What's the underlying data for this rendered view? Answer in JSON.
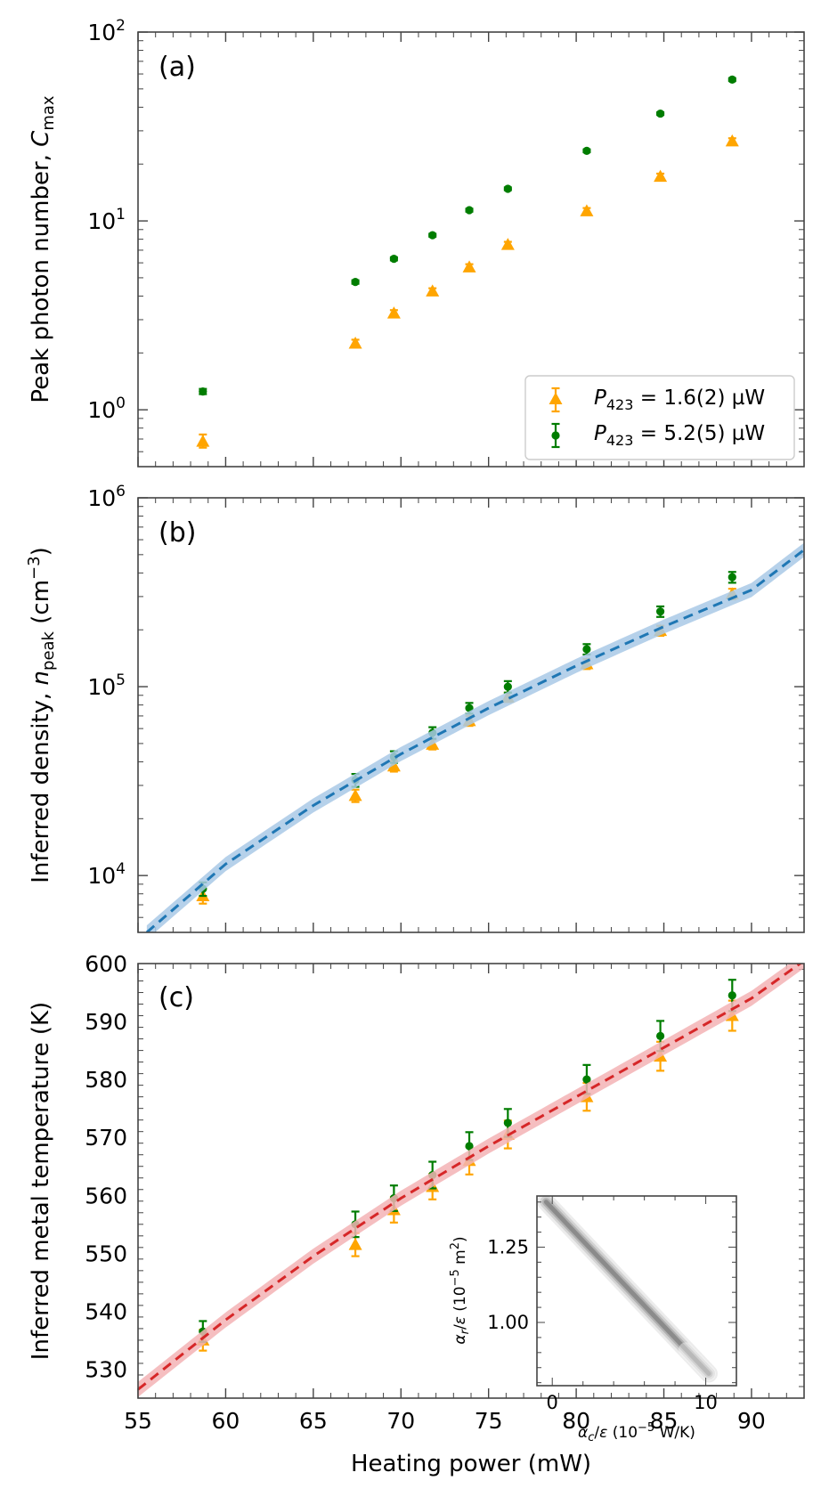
{
  "colors": {
    "series_low": "#ffa500",
    "series_high": "#007d00",
    "fit_density": "#1f77b4",
    "fit_density_band": "#a9c9e6",
    "fit_temperature": "#d62728",
    "fit_temperature_band": "#f3b3b5",
    "frame": "#444444"
  },
  "chart_data": [
    {
      "panel_label": "(a)",
      "type": "scatter",
      "yscale": "log",
      "ylabel": "Peak photon number, C_max",
      "ylabel_parts": {
        "main": "Peak photon number, ",
        "var": "C",
        "sub": "max"
      },
      "xlim": [
        55,
        93
      ],
      "ylim": [
        0.5,
        100
      ],
      "y_tick_labels": [
        {
          "value": 1,
          "base": "10",
          "exp": "0"
        },
        {
          "value": 10,
          "base": "10",
          "exp": "1"
        },
        {
          "value": 100,
          "base": "10",
          "exp": "2"
        }
      ],
      "legend": {
        "position": "lower-right",
        "entries": [
          {
            "series": "low",
            "var": "P",
            "sub": "423",
            "text": " = 1.6(2) µW"
          },
          {
            "series": "high",
            "var": "P",
            "sub": "423",
            "text": " = 5.2(5) µW"
          }
        ]
      },
      "series": [
        {
          "key": "low",
          "name": "P_423 = 1.6(2) µW",
          "marker": "triangle",
          "x": [
            58.7,
            67.4,
            69.6,
            71.8,
            73.9,
            76.1,
            80.6,
            84.8,
            88.9
          ],
          "y": [
            0.68,
            2.25,
            3.25,
            4.25,
            5.7,
            7.5,
            11.3,
            17.2,
            26.5
          ],
          "err_low": [
            0.05,
            0.1,
            0.12,
            0.15,
            0.2,
            0.25,
            0.4,
            0.6,
            0.9
          ],
          "err_high": [
            0.06,
            0.1,
            0.12,
            0.15,
            0.2,
            0.25,
            0.4,
            0.6,
            0.9
          ]
        },
        {
          "key": "high",
          "name": "P_423 = 5.2(5) µW",
          "marker": "circle",
          "x": [
            58.7,
            67.4,
            69.6,
            71.8,
            73.9,
            76.1,
            80.6,
            84.8,
            88.9
          ],
          "y": [
            1.25,
            4.75,
            6.3,
            8.4,
            11.4,
            14.8,
            23.5,
            37.0,
            56.0
          ],
          "err_low": [
            0.04,
            0.1,
            0.12,
            0.15,
            0.2,
            0.25,
            0.4,
            0.6,
            1.0
          ],
          "err_high": [
            0.04,
            0.1,
            0.12,
            0.15,
            0.2,
            0.25,
            0.4,
            0.6,
            1.0
          ]
        }
      ]
    },
    {
      "panel_label": "(b)",
      "type": "scatter",
      "yscale": "log",
      "ylabel": "Inferred density, n_peak (cm^-3)",
      "ylabel_parts": {
        "main": "Inferred density, ",
        "var": "n",
        "sub": "peak",
        "unit_pre": " (cm",
        "unit_exp": "−3",
        "unit_post": ")"
      },
      "xlim": [
        55,
        93
      ],
      "ylim": [
        5000,
        1000000
      ],
      "y_tick_labels": [
        {
          "value": 10000,
          "base": "10",
          "exp": "4"
        },
        {
          "value": 100000,
          "base": "10",
          "exp": "5"
        },
        {
          "value": 1000000,
          "base": "10",
          "exp": "6"
        }
      ],
      "series": [
        {
          "key": "low",
          "name": "P_423 = 1.6(2) µW",
          "marker": "triangle",
          "x": [
            58.7,
            67.4,
            69.6,
            71.8,
            73.9,
            76.1,
            80.6,
            84.8,
            88.9
          ],
          "y": [
            7800,
            26500,
            38000,
            49500,
            66000,
            88000,
            132000,
            198000,
            310000
          ],
          "err_low": [
            700,
            2000,
            2500,
            3000,
            4000,
            5000,
            8000,
            12000,
            20000
          ],
          "err_high": [
            700,
            2000,
            2500,
            3000,
            4000,
            5000,
            8000,
            12000,
            20000
          ]
        },
        {
          "key": "high",
          "name": "P_423 = 5.2(5) µW",
          "marker": "circle",
          "x": [
            58.7,
            67.4,
            69.6,
            71.8,
            73.9,
            76.1,
            80.6,
            84.8,
            88.9
          ],
          "y": [
            8500,
            32000,
            42500,
            57000,
            77000,
            100000,
            158000,
            250000,
            380000
          ],
          "err_low": [
            700,
            2500,
            3000,
            4000,
            5000,
            7000,
            10000,
            16000,
            25000
          ],
          "err_high": [
            700,
            2500,
            3000,
            4000,
            5000,
            7000,
            10000,
            16000,
            25000
          ]
        },
        {
          "key": "fit",
          "type": "line",
          "style": "dashed",
          "band": true,
          "band_rel": 0.09,
          "x": [
            55.5,
            60,
            65,
            70,
            75,
            80,
            85,
            90,
            93
          ],
          "y": [
            5000,
            11500,
            23500,
            44000,
            77000,
            129000,
            208000,
            325000,
            530000
          ]
        }
      ]
    },
    {
      "panel_label": "(c)",
      "type": "scatter",
      "yscale": "linear",
      "xlabel": "Heating power (mW)",
      "ylabel": "Inferred metal temperature  (K)",
      "xlim": [
        55,
        93
      ],
      "ylim": [
        525,
        600
      ],
      "x_ticks": [
        55,
        60,
        65,
        70,
        75,
        80,
        85,
        90
      ],
      "y_ticks": [
        530,
        540,
        550,
        560,
        570,
        580,
        590,
        600
      ],
      "series": [
        {
          "key": "low",
          "name": "P_423 = 1.6(2) µW",
          "marker": "triangle",
          "x": [
            58.7,
            67.4,
            69.6,
            71.8,
            73.9,
            76.1,
            80.6,
            84.8,
            88.9
          ],
          "y": [
            535.0,
            551.5,
            557.5,
            561.5,
            566.0,
            570.5,
            577.0,
            584.0,
            591.0
          ],
          "err_low": [
            1.8,
            2.0,
            2.2,
            2.2,
            2.4,
            2.4,
            2.4,
            2.5,
            2.6
          ],
          "err_high": [
            1.8,
            2.0,
            2.2,
            2.2,
            2.4,
            2.4,
            2.4,
            2.5,
            2.6
          ]
        },
        {
          "key": "high",
          "name": "P_423 = 5.2(5) µW",
          "marker": "circle",
          "x": [
            58.7,
            67.4,
            69.6,
            71.8,
            73.9,
            76.1,
            80.6,
            84.8,
            88.9
          ],
          "y": [
            536.5,
            555.0,
            559.5,
            563.5,
            568.5,
            572.5,
            580.0,
            587.5,
            594.5
          ],
          "err_low": [
            1.8,
            2.2,
            2.2,
            2.3,
            2.4,
            2.4,
            2.5,
            2.6,
            2.7
          ],
          "err_high": [
            1.8,
            2.2,
            2.2,
            2.3,
            2.4,
            2.4,
            2.5,
            2.6,
            2.7
          ]
        },
        {
          "key": "fit",
          "type": "line",
          "style": "dashed",
          "band": true,
          "band_abs": 1.3,
          "x": [
            55,
            60,
            65,
            70,
            75,
            80,
            85,
            90,
            93
          ],
          "y": [
            526.5,
            538.5,
            549.5,
            559.5,
            568.5,
            577.0,
            585.5,
            594.0,
            600.5
          ]
        }
      ],
      "inset": {
        "type": "heatmap",
        "xlabel": "α_c/ε (10^-5 W/K)",
        "xlabel_parts": {
          "var": "α",
          "sub": "c",
          "post": "/",
          "var2": "ε",
          "unit_pre": " (10",
          "unit_exp": "−5",
          "unit_post": " W/K)"
        },
        "ylabel": "α_r/ε (10^-5 m^2)",
        "ylabel_parts": {
          "var": "α",
          "sub": "r",
          "post": "/",
          "var2": "ε",
          "unit_pre": " (10",
          "unit_exp": "−5",
          "unit_post": " m",
          "unit_exp2": "2",
          "unit_post2": ")"
        },
        "xlim": [
          -1,
          12
        ],
        "ylim": [
          0.79,
          1.42
        ],
        "x_tick_labels": [
          "0",
          "10"
        ],
        "x_tick_values": [
          0,
          10
        ],
        "y_tick_labels": [
          "1.00",
          "1.25"
        ],
        "y_tick_values": [
          1.0,
          1.25
        ],
        "ridge": {
          "x_start": -0.4,
          "y_start": 1.4,
          "x_end": 10.2,
          "y_end": 0.83
        }
      }
    }
  ]
}
